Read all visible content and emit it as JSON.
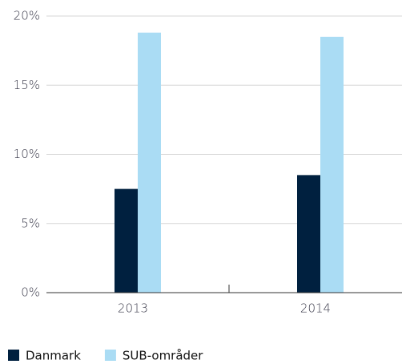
{
  "chart_data": {
    "type": "bar",
    "categories": [
      "2013",
      "2014"
    ],
    "series": [
      {
        "name": "Danmark",
        "color": "#00203f",
        "values": [
          7.5,
          8.5
        ]
      },
      {
        "name": "SUB-områder",
        "color": "#aadcf4",
        "values": [
          18.8,
          18.5
        ]
      }
    ],
    "ylim": [
      0,
      20
    ],
    "yticks": [
      {
        "value": 0,
        "label": "0%"
      },
      {
        "value": 5,
        "label": "5%"
      },
      {
        "value": 10,
        "label": "10%"
      },
      {
        "value": 15,
        "label": "15%"
      },
      {
        "value": 20,
        "label": "20%"
      }
    ],
    "grid": true,
    "legend": "bottom"
  }
}
